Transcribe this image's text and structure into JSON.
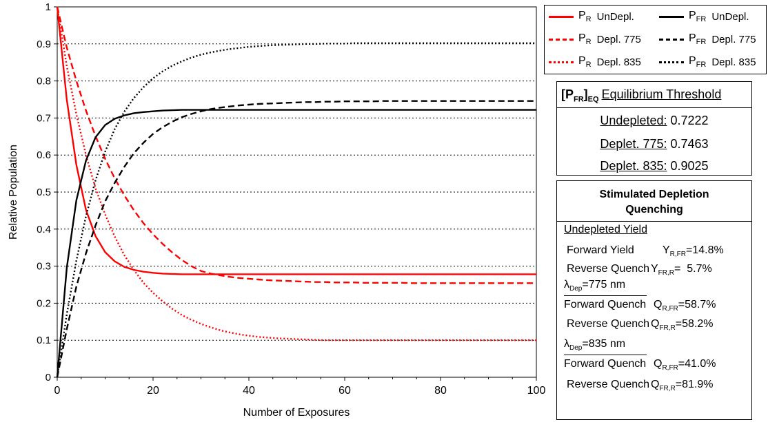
{
  "chart_data": {
    "type": "line",
    "xlabel": "Number of Exposures",
    "ylabel": "Relative Population",
    "xlim": [
      0,
      100
    ],
    "ylim": [
      0,
      1
    ],
    "x_ticks": [
      "0",
      "20",
      "40",
      "60",
      "80",
      "100"
    ],
    "y_ticks": [
      "0",
      "0.1",
      "0.2",
      "0.3",
      "0.4",
      "0.5",
      "0.6",
      "0.7",
      "0.8",
      "0.9",
      "1"
    ],
    "grid": "horizontal dotted",
    "legend_position": "top-right",
    "x": [
      0,
      2,
      4,
      6,
      8,
      10,
      12,
      14,
      16,
      18,
      20,
      22,
      24,
      26,
      28,
      30,
      32,
      34,
      36,
      38,
      40,
      42,
      44,
      46,
      48,
      50,
      52,
      54,
      56,
      58,
      60,
      62,
      64,
      66,
      68,
      70,
      72,
      74,
      76,
      78,
      80,
      82,
      84,
      86,
      88,
      90,
      92,
      94,
      96,
      98,
      100
    ],
    "series": [
      {
        "name": "P_R UnDepl.",
        "color": "#ff0000",
        "dash": "solid",
        "values": [
          1,
          0.749,
          0.573,
          0.452,
          0.381,
          0.338,
          0.313,
          0.298,
          0.29,
          0.285,
          0.282,
          0.28,
          0.279,
          0.278,
          0.278,
          0.278,
          0.278,
          0.278,
          0.278,
          0.278,
          0.278,
          0.278,
          0.278,
          0.278,
          0.278,
          0.278,
          0.278,
          0.278,
          0.278,
          0.278,
          0.278,
          0.278,
          0.278,
          0.278,
          0.278,
          0.278,
          0.278,
          0.278,
          0.278,
          0.278,
          0.278,
          0.278,
          0.278,
          0.278,
          0.278,
          0.278,
          0.278,
          0.278,
          0.278,
          0.278,
          0.278
        ]
      },
      {
        "name": "P_R Depl. 775",
        "color": "#ff0000",
        "dash": "dashed",
        "values": [
          1,
          0.89,
          0.8,
          0.72,
          0.651,
          0.59,
          0.537,
          0.491,
          0.451,
          0.416,
          0.386,
          0.36,
          0.337,
          0.317,
          0.3,
          0.287,
          0.28,
          0.275,
          0.271,
          0.268,
          0.266,
          0.264,
          0.262,
          0.261,
          0.26,
          0.259,
          0.258,
          0.257,
          0.257,
          0.256,
          0.256,
          0.256,
          0.255,
          0.255,
          0.255,
          0.255,
          0.255,
          0.254,
          0.254,
          0.254,
          0.254,
          0.254,
          0.254,
          0.254,
          0.254,
          0.254,
          0.254,
          0.254,
          0.254,
          0.254,
          0.254
        ]
      },
      {
        "name": "P_R Depl. 835",
        "color": "#ff0000",
        "dash": "dotted",
        "values": [
          1,
          0.84,
          0.71,
          0.6,
          0.51,
          0.44,
          0.38,
          0.33,
          0.29,
          0.255,
          0.228,
          0.205,
          0.185,
          0.168,
          0.155,
          0.144,
          0.135,
          0.127,
          0.121,
          0.116,
          0.112,
          0.109,
          0.107,
          0.105,
          0.104,
          0.103,
          0.102,
          0.101,
          0.1,
          0.1,
          0.1,
          0.1,
          0.1,
          0.1,
          0.1,
          0.1,
          0.1,
          0.1,
          0.1,
          0.1,
          0.1,
          0.1,
          0.1,
          0.1,
          0.1,
          0.1,
          0.1,
          0.1,
          0.1,
          0.1,
          0.1
        ]
      },
      {
        "name": "P_FR UnDepl.",
        "color": "#000000",
        "dash": "solid",
        "values": [
          0,
          0.296,
          0.478,
          0.585,
          0.648,
          0.681,
          0.698,
          0.707,
          0.713,
          0.716,
          0.718,
          0.72,
          0.721,
          0.722,
          0.722,
          0.722,
          0.722,
          0.722,
          0.722,
          0.722,
          0.722,
          0.722,
          0.722,
          0.722,
          0.722,
          0.722,
          0.722,
          0.722,
          0.722,
          0.722,
          0.722,
          0.722,
          0.722,
          0.722,
          0.722,
          0.722,
          0.722,
          0.722,
          0.722,
          0.722,
          0.722,
          0.722,
          0.722,
          0.722,
          0.722,
          0.722,
          0.722,
          0.722,
          0.722,
          0.722,
          0.722
        ]
      },
      {
        "name": "P_FR Depl. 775",
        "color": "#000000",
        "dash": "dashed",
        "values": [
          0,
          0.13,
          0.245,
          0.335,
          0.41,
          0.475,
          0.525,
          0.568,
          0.605,
          0.633,
          0.657,
          0.675,
          0.69,
          0.702,
          0.711,
          0.718,
          0.724,
          0.728,
          0.731,
          0.734,
          0.736,
          0.738,
          0.739,
          0.74,
          0.741,
          0.742,
          0.743,
          0.743,
          0.744,
          0.744,
          0.745,
          0.745,
          0.745,
          0.745,
          0.746,
          0.746,
          0.746,
          0.746,
          0.746,
          0.746,
          0.746,
          0.746,
          0.746,
          0.746,
          0.746,
          0.746,
          0.746,
          0.746,
          0.746,
          0.746,
          0.746
        ]
      },
      {
        "name": "P_FR Depl. 835",
        "color": "#000000",
        "dash": "dotted",
        "values": [
          0,
          0.17,
          0.315,
          0.435,
          0.532,
          0.609,
          0.67,
          0.717,
          0.754,
          0.783,
          0.807,
          0.826,
          0.841,
          0.853,
          0.863,
          0.871,
          0.877,
          0.882,
          0.886,
          0.889,
          0.892,
          0.894,
          0.896,
          0.897,
          0.898,
          0.899,
          0.9,
          0.9,
          0.901,
          0.901,
          0.901,
          0.902,
          0.902,
          0.902,
          0.902,
          0.902,
          0.902,
          0.902,
          0.902,
          0.902,
          0.902,
          0.902,
          0.902,
          0.902,
          0.902,
          0.902,
          0.902,
          0.902,
          0.902,
          0.902,
          0.902
        ]
      }
    ]
  },
  "legend": {
    "items": [
      {
        "sym": "P",
        "sub": "R",
        "text": "UnDepl.",
        "color": "#ff0000",
        "dash": "solid"
      },
      {
        "sym": "P",
        "sub": "FR",
        "text": "UnDepl.",
        "color": "#000000",
        "dash": "solid"
      },
      {
        "sym": "P",
        "sub": "R",
        "text": "Depl. 775",
        "color": "#ff0000",
        "dash": "dashed"
      },
      {
        "sym": "P",
        "sub": "FR",
        "text": "Depl. 775",
        "color": "#000000",
        "dash": "dashed"
      },
      {
        "sym": "P",
        "sub": "R",
        "text": "Depl. 835",
        "color": "#ff0000",
        "dash": "dotted"
      },
      {
        "sym": "P",
        "sub": "FR",
        "text": "Depl. 835",
        "color": "#000000",
        "dash": "dotted"
      }
    ]
  },
  "equilibrium": {
    "sym_main": "[P",
    "sym_sub_fr": "FR",
    "sym_close": "]",
    "sym_sub_eq": "EQ",
    "title": "Equilibrium Threshold",
    "rows": [
      {
        "label": "Undepleted:",
        "value": "0.7222"
      },
      {
        "label": "Deplet. 775:",
        "value": "0.7463"
      },
      {
        "label": "Deplet. 835:",
        "value": "0.9025"
      }
    ]
  },
  "quenching": {
    "title_line1": "Stimulated Depletion",
    "title_line2": "Quenching",
    "undepleted_heading": "Undepleted Yield",
    "forward_yield_label": "Forward Yield",
    "forward_yield_sym": "Y",
    "forward_yield_sub": "R,FR",
    "forward_yield_value": "=14.8%",
    "reverse_quench_label": "Reverse Quench",
    "reverse_yield_sym": "Y",
    "reverse_yield_sub": "FR,R",
    "reverse_yield_value": "=  5.7%",
    "lambda_sym": "λ",
    "lambda_sub": "Dep",
    "dep775": "=775 nm",
    "dep835": "=835 nm",
    "forward_quench_label": "Forward Quench",
    "q_sym": "Q",
    "q_sub_rfr": "R,FR",
    "q_sub_frr": "FR,R",
    "q775_forward": "=58.7%",
    "q775_reverse": "=58.2%",
    "q835_forward": "=41.0%",
    "q835_reverse": "=81.9%"
  }
}
